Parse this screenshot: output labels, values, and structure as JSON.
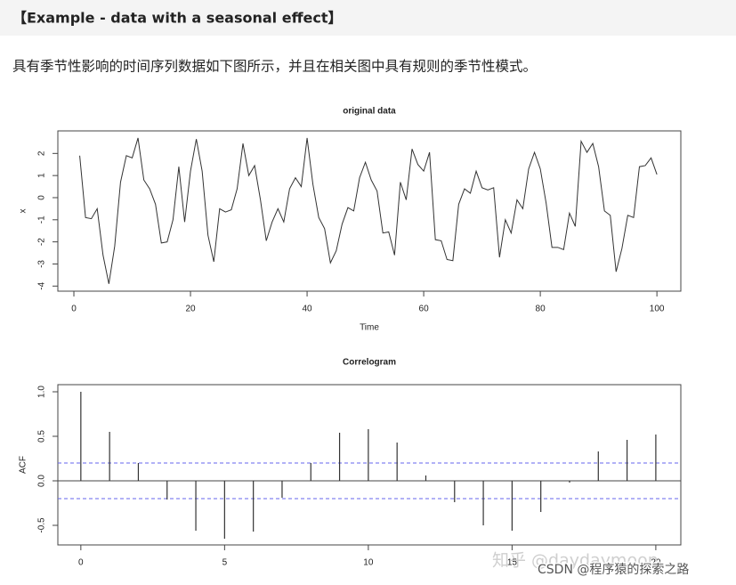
{
  "header": {
    "title": "【Example - data with a seasonal effect】"
  },
  "body": {
    "paragraph": "具有季节性影响的时间序列数据如下图所示，并且在相关图中具有规则的季节性模式。"
  },
  "chart_data": [
    {
      "type": "line",
      "title": "original data",
      "xlabel": "Time",
      "ylabel": "x",
      "color": "#333333",
      "x": [
        1,
        2,
        3,
        4,
        5,
        6,
        7,
        8,
        9,
        10,
        11,
        12,
        13,
        14,
        15,
        16,
        17,
        18,
        19,
        20,
        21,
        22,
        23,
        24,
        25,
        26,
        27,
        28,
        29,
        30,
        31,
        32,
        33,
        34,
        35,
        36,
        37,
        38,
        39,
        40,
        41,
        42,
        43,
        44,
        45,
        46,
        47,
        48,
        49,
        50,
        51,
        52,
        53,
        54,
        55,
        56,
        57,
        58,
        59,
        60,
        61,
        62,
        63,
        64,
        65,
        66,
        67,
        68,
        69,
        70,
        71,
        72,
        73,
        74,
        75,
        76,
        77,
        78,
        79,
        80,
        81,
        82,
        83,
        84,
        85,
        86,
        87,
        88,
        89,
        90,
        91,
        92,
        93,
        94,
        95,
        96,
        97,
        98,
        99,
        100
      ],
      "values": [
        1.9,
        -0.9,
        -0.95,
        -0.5,
        -2.6,
        -3.9,
        -2.2,
        0.7,
        1.9,
        1.8,
        2.7,
        0.8,
        0.4,
        -0.3,
        -2.05,
        -2.0,
        -1.0,
        1.4,
        -1.1,
        1.2,
        2.65,
        1.2,
        -1.7,
        -2.9,
        -0.5,
        -0.65,
        -0.55,
        0.4,
        2.45,
        1.0,
        1.45,
        -0.1,
        -1.95,
        -1.1,
        -0.5,
        -1.1,
        0.4,
        0.9,
        0.5,
        2.7,
        0.6,
        -0.9,
        -1.4,
        -2.95,
        -2.4,
        -1.2,
        -0.45,
        -0.6,
        0.9,
        1.6,
        0.8,
        0.3,
        -1.6,
        -1.55,
        -2.6,
        0.7,
        -0.1,
        2.2,
        1.5,
        1.2,
        2.05,
        -1.9,
        -1.95,
        -2.8,
        -2.85,
        -0.3,
        0.4,
        0.2,
        1.2,
        0.45,
        0.35,
        0.45,
        -2.7,
        -1.0,
        -1.6,
        -0.1,
        -0.5,
        1.3,
        2.05,
        1.3,
        -0.25,
        -2.25,
        -2.25,
        -2.35,
        -0.7,
        -1.3,
        2.55,
        2.05,
        2.45,
        1.4,
        -0.6,
        -0.8,
        -3.35,
        -2.3,
        -0.8,
        -0.9,
        1.4,
        1.45,
        1.8,
        1.05
      ],
      "xlim": [
        -2.75,
        104.1
      ],
      "xticks": [
        0,
        20,
        40,
        60,
        80,
        100
      ],
      "ylim": [
        -4.23,
        3.02
      ],
      "yticks": [
        -4,
        -3,
        -2,
        -1,
        0,
        1,
        2
      ]
    },
    {
      "type": "stem",
      "title": "Correlogram",
      "ylabel": "ACF",
      "color": "#333333",
      "x": [
        0,
        1,
        2,
        3,
        4,
        5,
        6,
        7,
        8,
        9,
        10,
        11,
        12,
        13,
        14,
        15,
        16,
        17,
        18,
        19,
        20
      ],
      "values": [
        1.0,
        0.55,
        0.2,
        -0.21,
        -0.56,
        -0.65,
        -0.57,
        -0.19,
        0.2,
        0.54,
        0.58,
        0.43,
        0.06,
        -0.24,
        -0.5,
        -0.56,
        -0.35,
        -0.02,
        0.33,
        0.46,
        0.52
      ],
      "reference_lines": [
        0.2,
        -0.2
      ],
      "reference_color": "#6666ee",
      "xlim": [
        -0.8,
        20.87
      ],
      "xticks": [
        0,
        5,
        10,
        15,
        20
      ],
      "ylim": [
        -0.72,
        1.08
      ],
      "yticks": [
        -0.5,
        {
          "value": 0,
          "label": "0.0"
        },
        0.5,
        {
          "value": 1,
          "label": "1.0"
        }
      ]
    }
  ],
  "watermarks": [
    "知乎 @daydaymoon",
    "CSDN @程序猿的探索之路"
  ]
}
